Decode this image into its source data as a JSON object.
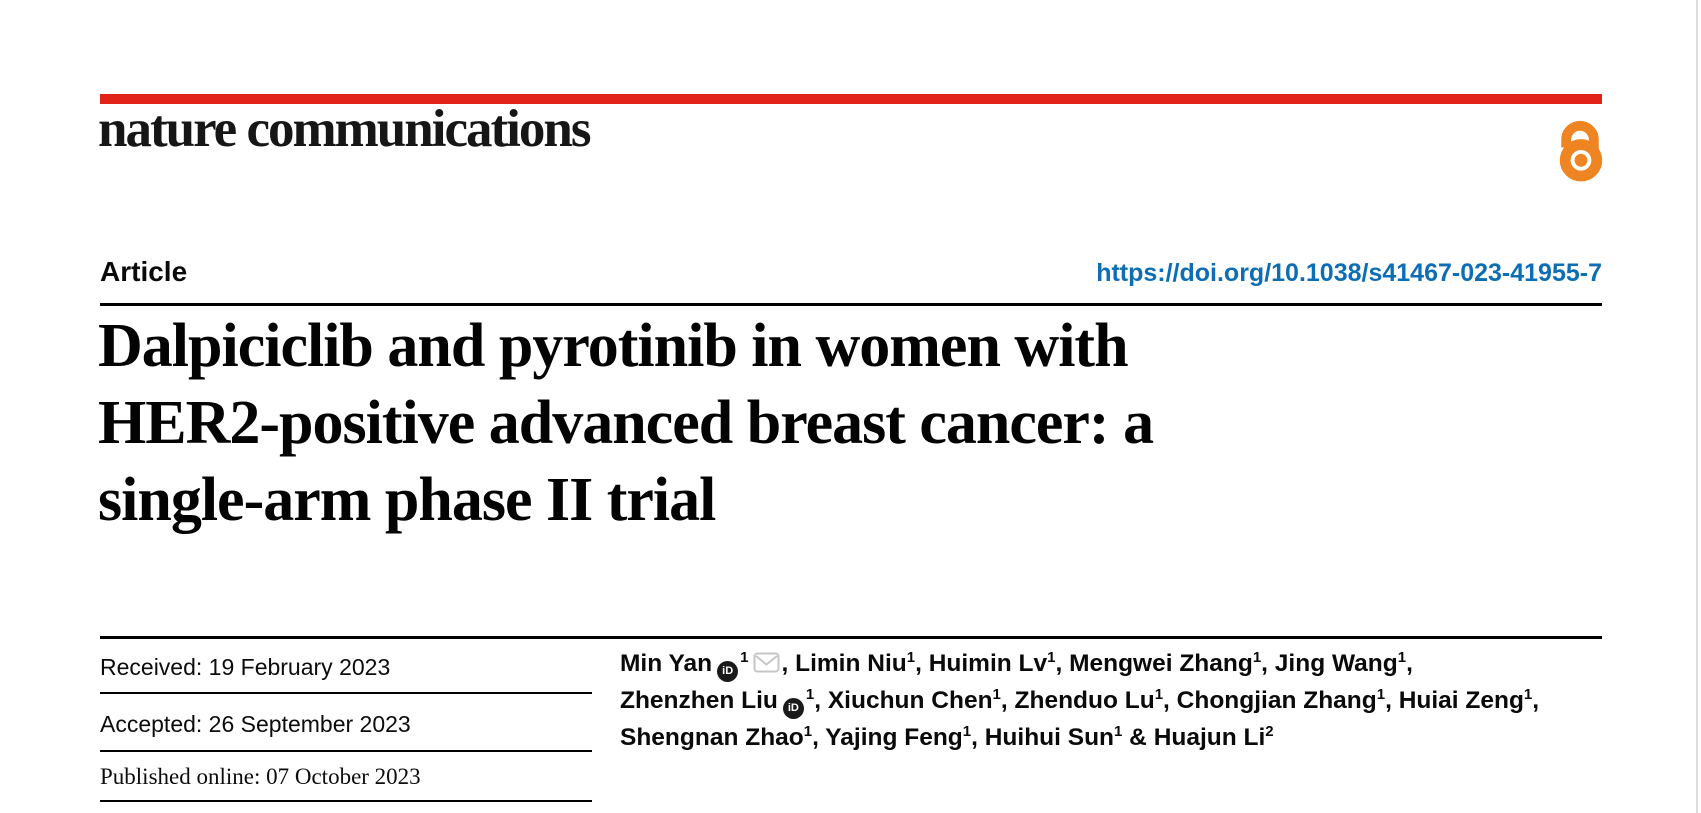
{
  "journal_logo": "nature communications",
  "article_label": "Article",
  "doi": "https://doi.org/10.1038/s41467-023-41955-7",
  "title_lines": [
    "Dalpiciclib and pyrotinib in women with",
    "HER2-positive advanced breast cancer: a",
    "single-arm phase II trial"
  ],
  "dates": [
    {
      "text": "Received: 19 February 2023"
    },
    {
      "text": "Accepted: 26 September 2023"
    },
    {
      "text": "Published online: 07 October 2023"
    }
  ],
  "authors": {
    "lines": [
      [
        {
          "name": "Min Yan",
          "orcid": true,
          "sup": "1",
          "envelope": true,
          "sep": ", "
        },
        {
          "name": "Limin Niu",
          "sup": "1",
          "sep": ", "
        },
        {
          "name": "Huimin Lv",
          "sup": "1",
          "sep": ", "
        },
        {
          "name": "Mengwei Zhang",
          "sup": "1",
          "sep": ", "
        },
        {
          "name": "Jing Wang",
          "sup": "1",
          "sep": ","
        }
      ],
      [
        {
          "name": "Zhenzhen Liu",
          "orcid": true,
          "sup": "1",
          "sep": ", "
        },
        {
          "name": "Xiuchun Chen",
          "sup": "1",
          "sep": ", "
        },
        {
          "name": "Zhenduo Lu",
          "sup": "1",
          "sep": ", "
        },
        {
          "name": "Chongjian Zhang",
          "sup": "1",
          "sep": ", "
        },
        {
          "name": "Huiai Zeng",
          "sup": "1",
          "sep": ","
        }
      ],
      [
        {
          "name": "Shengnan Zhao",
          "sup": "1",
          "sep": ", "
        },
        {
          "name": "Yajing Feng",
          "sup": "1",
          "sep": ", "
        },
        {
          "name": "Huihui Sun",
          "sup": "1",
          "sep": " & "
        },
        {
          "name": "Huajun Li",
          "sup": "2",
          "sep": ""
        }
      ]
    ]
  },
  "icons": {
    "orcid_label": "iD",
    "open_access": "open-access-lock",
    "email": "envelope"
  },
  "colors": {
    "brand_red": "#e2231a",
    "link_blue": "#0e6eb5",
    "open_access_orange": "#ee8422"
  }
}
